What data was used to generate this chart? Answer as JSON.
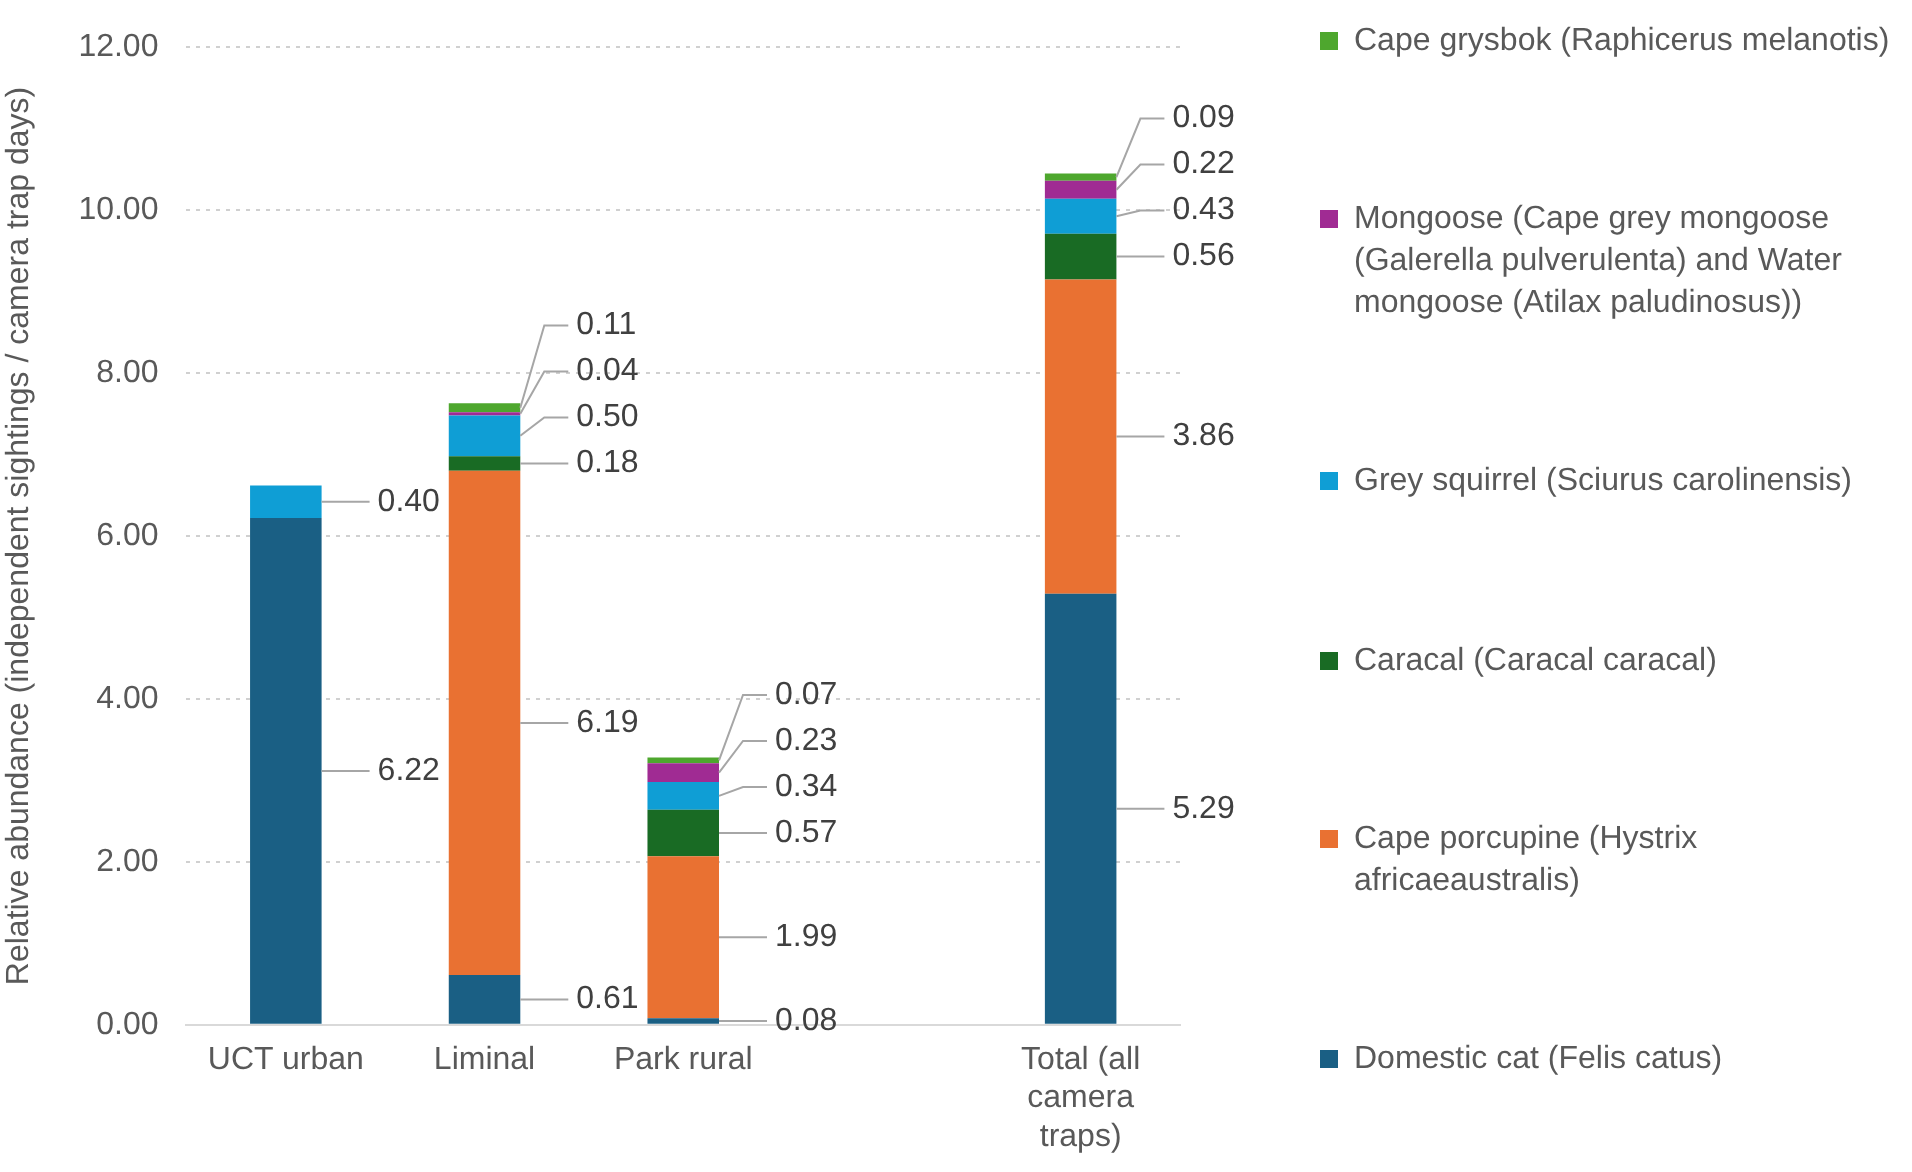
{
  "chart_data": {
    "type": "bar",
    "stacked": true,
    "ylabel": "Relative abundance (independent sightings / camera trap days)",
    "categories": [
      "UCT urban",
      "Liminal",
      "Park rural",
      null,
      "Total (all camera traps)"
    ],
    "series": [
      {
        "name": "Domestic cat (Felis catus)",
        "color": "#1a5f84",
        "values": [
          6.22,
          0.61,
          0.08,
          null,
          5.29
        ],
        "value_labels": [
          "6.22",
          "0.61",
          "0.08",
          null,
          "5.29"
        ]
      },
      {
        "name": "Cape porcupine (Hystrix africaeaustralis)",
        "color": "#e97132",
        "values": [
          null,
          6.19,
          1.99,
          null,
          3.86
        ],
        "value_labels": [
          null,
          "6.19",
          "1.99",
          null,
          "3.86"
        ]
      },
      {
        "name": "Caracal (Caracal caracal)",
        "color": "#196b24",
        "values": [
          null,
          0.18,
          0.57,
          null,
          0.56
        ],
        "value_labels": [
          null,
          "0.18",
          "0.57",
          null,
          "0.56"
        ]
      },
      {
        "name": "Grey squirrel (Sciurus carolinensis)",
        "color": "#0f9ed5",
        "values": [
          0.4,
          0.5,
          0.34,
          null,
          0.43
        ],
        "value_labels": [
          "0.40",
          "0.50",
          "0.34",
          null,
          "0.43"
        ]
      },
      {
        "name": "Mongoose (Cape grey mongoose (Galerella pulverulenta) and Water mongoose (Atilax paludinosus))",
        "color": "#a02b93",
        "values": [
          null,
          0.04,
          0.23,
          null,
          0.22
        ],
        "value_labels": [
          null,
          "0.04",
          "0.23",
          null,
          "0.22"
        ]
      },
      {
        "name": "Cape grysbok (Raphicerus melanotis)",
        "color": "#4ea72e",
        "values": [
          null,
          0.11,
          0.07,
          null,
          0.09
        ],
        "value_labels": [
          null,
          "0.11",
          "0.07",
          null,
          "0.09"
        ]
      }
    ],
    "ylim": [
      0,
      12
    ],
    "yticks": [
      {
        "value": 0,
        "label": "0.00"
      },
      {
        "value": 2,
        "label": "2.00"
      },
      {
        "value": 4,
        "label": "4.00"
      },
      {
        "value": 6,
        "label": "6.00"
      },
      {
        "value": 8,
        "label": "8.00"
      },
      {
        "value": 10,
        "label": "10.00"
      },
      {
        "value": 12,
        "label": "12.00"
      }
    ],
    "grid": "y",
    "legend": "right"
  }
}
